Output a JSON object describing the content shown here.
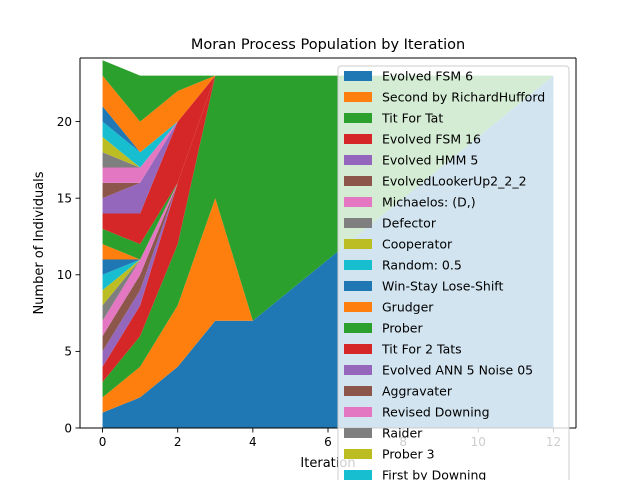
{
  "chart_data": {
    "type": "area",
    "title": "Moran Process Population by Iteration",
    "xlabel": "Iteration",
    "ylabel": "Number of Individuals",
    "xlim": [
      -0.6,
      12.6
    ],
    "ylim": [
      0,
      24.15
    ],
    "x_ticks": [
      0,
      2,
      4,
      6,
      8,
      10,
      12
    ],
    "y_ticks": [
      0,
      5,
      10,
      15,
      20
    ],
    "grid": false,
    "legend_position": "upper-right",
    "x": [
      0,
      1,
      2,
      3,
      4,
      5,
      6,
      7,
      8,
      9,
      10,
      11,
      12
    ],
    "series": [
      {
        "name": "Evolved FSM 6",
        "color": "#1f77b4",
        "values": [
          1,
          2,
          4,
          7,
          7,
          9,
          11,
          13,
          15,
          17,
          19,
          21,
          23
        ]
      },
      {
        "name": "Second by RichardHufford",
        "color": "#ff7f0e",
        "values": [
          1,
          2,
          4,
          8,
          0,
          0,
          0,
          0,
          0,
          0,
          0,
          0,
          0
        ]
      },
      {
        "name": "Tit For Tat",
        "color": "#2ca02c",
        "values": [
          1,
          2,
          4,
          8,
          16,
          14,
          12,
          10,
          8,
          6,
          4,
          2,
          0
        ]
      },
      {
        "name": "Evolved FSM 16",
        "color": "#d62728",
        "values": [
          1,
          2,
          4,
          0,
          0,
          0,
          0,
          0,
          0,
          0,
          0,
          0,
          0
        ]
      },
      {
        "name": "Evolved HMM 5",
        "color": "#9467bd",
        "values": [
          1,
          1,
          0,
          0,
          0,
          0,
          0,
          0,
          0,
          0,
          0,
          0,
          0
        ]
      },
      {
        "name": "EvolvedLookerUp2_2_2",
        "color": "#8c564b",
        "values": [
          1,
          1,
          0,
          0,
          0,
          0,
          0,
          0,
          0,
          0,
          0,
          0,
          0
        ]
      },
      {
        "name": "Michaelos: (D,)",
        "color": "#e377c2",
        "values": [
          1,
          1,
          0,
          0,
          0,
          0,
          0,
          0,
          0,
          0,
          0,
          0,
          0
        ]
      },
      {
        "name": "Defector",
        "color": "#7f7f7f",
        "values": [
          1,
          0,
          0,
          0,
          0,
          0,
          0,
          0,
          0,
          0,
          0,
          0,
          0
        ]
      },
      {
        "name": "Cooperator",
        "color": "#bcbd22",
        "values": [
          1,
          0,
          0,
          0,
          0,
          0,
          0,
          0,
          0,
          0,
          0,
          0,
          0
        ]
      },
      {
        "name": "Random: 0.5",
        "color": "#17becf",
        "values": [
          1,
          0,
          0,
          0,
          0,
          0,
          0,
          0,
          0,
          0,
          0,
          0,
          0
        ]
      },
      {
        "name": "Win-Stay Lose-Shift",
        "color": "#1f77b4",
        "values": [
          1,
          0,
          0,
          0,
          0,
          0,
          0,
          0,
          0,
          0,
          0,
          0,
          0
        ]
      },
      {
        "name": "Grudger",
        "color": "#ff7f0e",
        "values": [
          1,
          0,
          0,
          0,
          0,
          0,
          0,
          0,
          0,
          0,
          0,
          0,
          0
        ]
      },
      {
        "name": "Prober",
        "color": "#2ca02c",
        "values": [
          1,
          1,
          0,
          0,
          0,
          0,
          0,
          0,
          0,
          0,
          0,
          0,
          0
        ]
      },
      {
        "name": "Tit For 2 Tats",
        "color": "#d62728",
        "values": [
          1,
          2,
          4,
          0,
          0,
          0,
          0,
          0,
          0,
          0,
          0,
          0,
          0
        ]
      },
      {
        "name": "Evolved ANN 5 Noise 05",
        "color": "#9467bd",
        "values": [
          1,
          2,
          0,
          0,
          0,
          0,
          0,
          0,
          0,
          0,
          0,
          0,
          0
        ]
      },
      {
        "name": "Aggravater",
        "color": "#8c564b",
        "values": [
          1,
          0,
          0,
          0,
          0,
          0,
          0,
          0,
          0,
          0,
          0,
          0,
          0
        ]
      },
      {
        "name": "Revised Downing",
        "color": "#e377c2",
        "values": [
          1,
          1,
          0,
          0,
          0,
          0,
          0,
          0,
          0,
          0,
          0,
          0,
          0
        ]
      },
      {
        "name": "Raider",
        "color": "#7f7f7f",
        "values": [
          1,
          0,
          0,
          0,
          0,
          0,
          0,
          0,
          0,
          0,
          0,
          0,
          0
        ]
      },
      {
        "name": "Prober 3",
        "color": "#bcbd22",
        "values": [
          1,
          0,
          0,
          0,
          0,
          0,
          0,
          0,
          0,
          0,
          0,
          0,
          0
        ]
      },
      {
        "name": "First by Downing",
        "color": "#17becf",
        "values": [
          1,
          1,
          0,
          0,
          0,
          0,
          0,
          0,
          0,
          0,
          0,
          0,
          0
        ]
      },
      {
        "name": "",
        "color": "#1f77b4",
        "values": [
          1,
          0,
          0,
          0,
          0,
          0,
          0,
          0,
          0,
          0,
          0,
          0,
          0
        ]
      },
      {
        "name": "",
        "color": "#ff7f0e",
        "values": [
          2,
          2,
          2,
          0,
          0,
          0,
          0,
          0,
          0,
          0,
          0,
          0,
          0
        ]
      },
      {
        "name": "",
        "color": "#2ca02c",
        "values": [
          1,
          3,
          1,
          0,
          0,
          0,
          0,
          0,
          0,
          0,
          0,
          0,
          0
        ]
      }
    ]
  }
}
